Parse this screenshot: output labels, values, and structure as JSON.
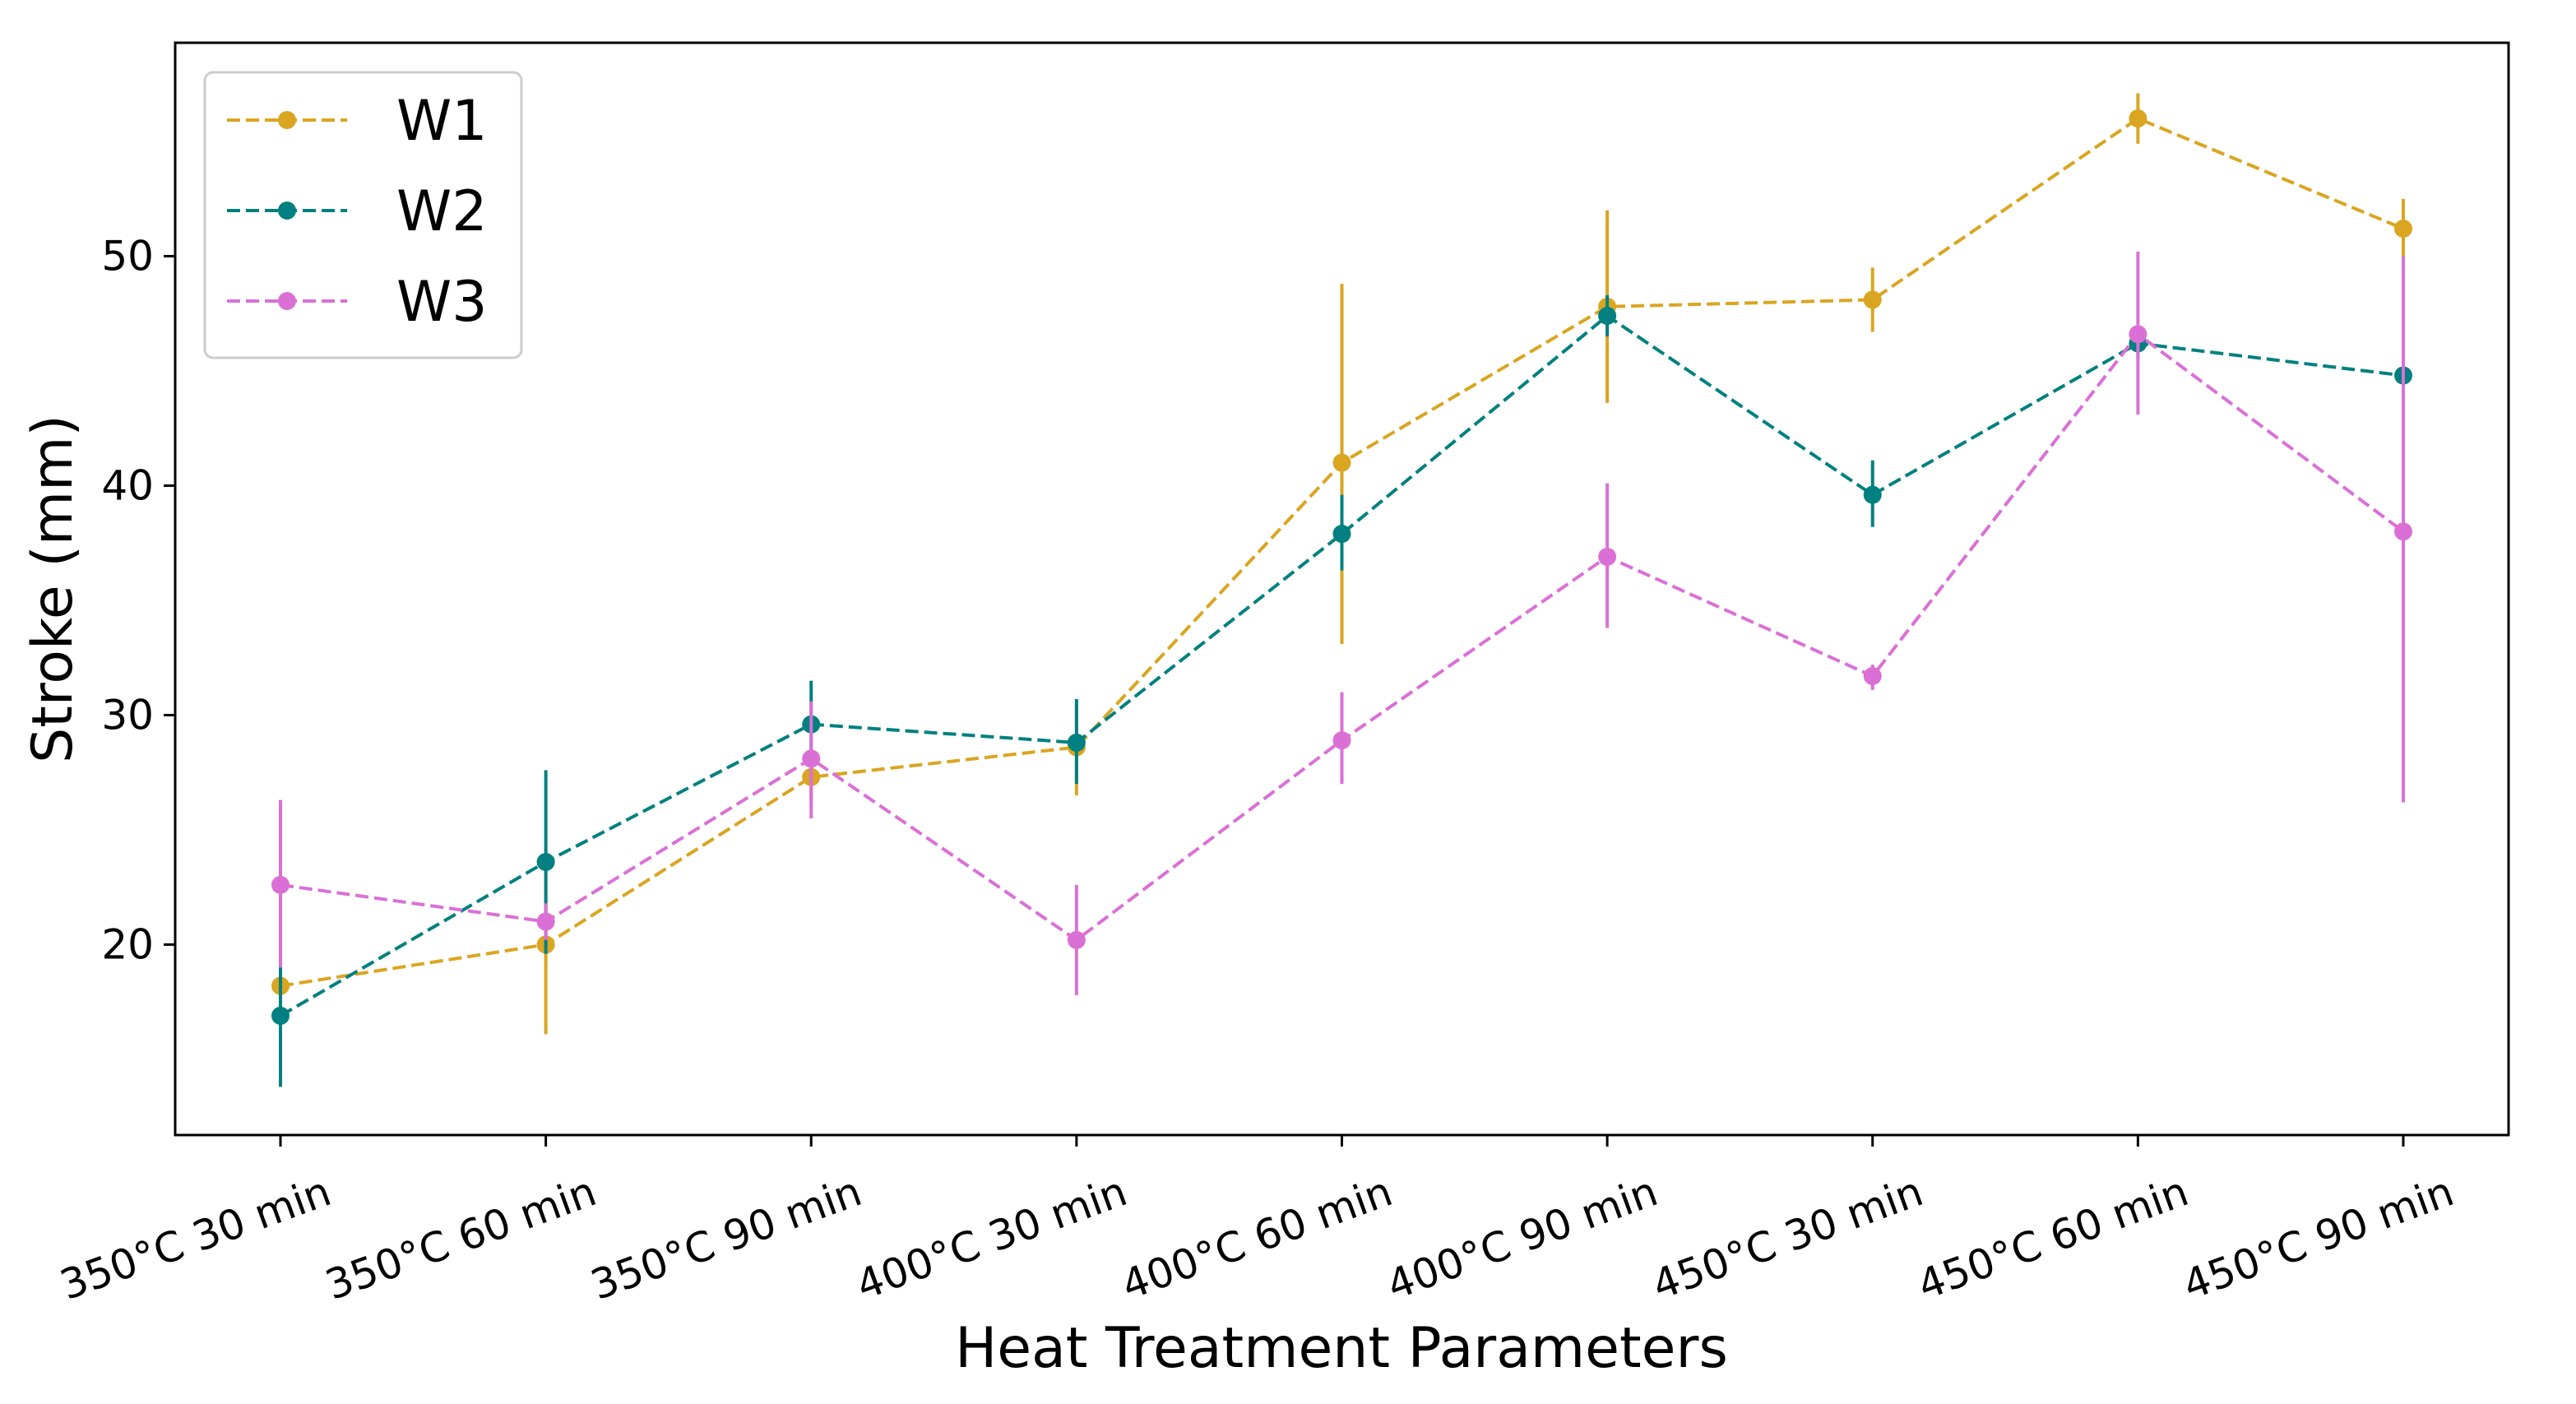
{
  "chart_data": {
    "type": "line",
    "title": "",
    "xlabel": "Heat Treatment Parameters",
    "ylabel": "Stroke (mm)",
    "categories": [
      "350°C 30 min",
      "350°C 60 min",
      "350°C 90 min",
      "400°C 30 min",
      "400°C 60 min",
      "400°C 90 min",
      "450°C 30 min",
      "450°C 60 min",
      "450°C 90 min"
    ],
    "ylim": [
      11.7,
      59.3
    ],
    "yticks": [
      20,
      30,
      40,
      50
    ],
    "yticklabels": [
      "20",
      "30",
      "40",
      "50"
    ],
    "grid": false,
    "legend_position": "upper left",
    "series": [
      {
        "name": "W1",
        "color": "#DAA520",
        "values": [
          18.2,
          20.0,
          27.3,
          28.6,
          41.0,
          47.8,
          48.1,
          56.0,
          51.2
        ],
        "err_low": [
          17.5,
          16.1,
          26.2,
          26.5,
          33.1,
          43.6,
          46.7,
          54.9,
          50.0
        ],
        "err_high": [
          19.0,
          23.4,
          28.5,
          30.5,
          48.8,
          52.0,
          49.5,
          57.1,
          52.5
        ]
      },
      {
        "name": "W2",
        "color": "#008080",
        "values": [
          16.9,
          23.6,
          29.6,
          28.8,
          37.9,
          47.4,
          39.6,
          46.2,
          44.8
        ],
        "err_low": [
          13.8,
          19.6,
          27.8,
          27.0,
          36.3,
          46.5,
          38.2,
          45.5,
          44.0
        ],
        "err_high": [
          19.2,
          27.6,
          31.5,
          30.7,
          39.6,
          48.3,
          41.1,
          46.9,
          45.6
        ]
      },
      {
        "name": "W3",
        "color": "#DA70D6",
        "values": [
          22.6,
          21.0,
          28.1,
          20.2,
          28.9,
          36.9,
          31.7,
          46.6,
          38.0
        ],
        "err_low": [
          19.0,
          20.2,
          25.5,
          17.8,
          27.0,
          33.8,
          31.1,
          43.1,
          26.2
        ],
        "err_high": [
          26.3,
          21.8,
          30.6,
          22.6,
          31.0,
          40.1,
          32.2,
          50.2,
          50.0
        ]
      }
    ]
  }
}
